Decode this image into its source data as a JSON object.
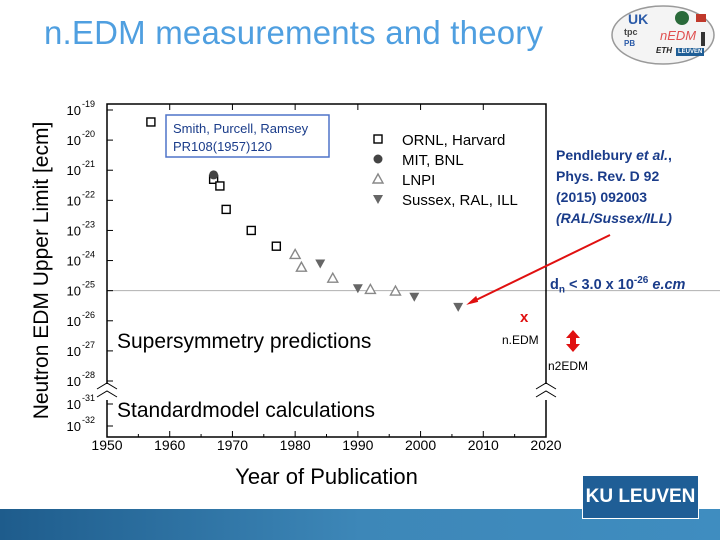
{
  "slide": {
    "title": "n.EDM measurements and theory"
  },
  "logos": {
    "uk": "UK",
    "tpc": "tpc",
    "pb": "PB",
    "nedm": "nEDM",
    "eth": "ETH",
    "leuven": "LEUVEN",
    "ku_leuven": "KU LEUVEN"
  },
  "colors": {
    "title": "#4f9fe0",
    "citation_text": "#1a3c8a",
    "arrow": "#e01010",
    "marker_red": "#e01010",
    "legend_box_border": "#4f73c9",
    "legend_box_text": "#1a3c8a"
  },
  "annotations": {
    "citation_line1_prefix": "Pendlebury ",
    "citation_line1_italic": "et al.",
    "citation_line1_suffix": ",",
    "citation_line2": "Phys. Rev. D 92",
    "citation_line3": "(2015) 092003",
    "citation_line4": "(RAL/Sussex/ILL)",
    "dn_d": "d",
    "dn_sub": "n",
    "dn_mid": " < 3.0 x 10",
    "dn_sup": "-26",
    "dn_unit": " e.cm",
    "x_marker": "x",
    "nedm_label": "n.EDM",
    "n2edm_label": "n2EDM"
  },
  "chart_data": {
    "type": "scatter",
    "xlabel": "Year of Publication",
    "ylabel": "Neutron EDM Upper Limit [ecm]",
    "xlim": [
      1950,
      2020
    ],
    "x_ticks": [
      "1950",
      "1960",
      "1970",
      "1980",
      "1990",
      "2000",
      "2010",
      "2020"
    ],
    "y_axis_log": true,
    "y_tick_exponents": [
      "-19",
      "-20",
      "-21",
      "-22",
      "-23",
      "-24",
      "-25",
      "-26",
      "-27",
      "-28"
    ],
    "y_tick_exponents_lower": [
      "-31",
      "-32"
    ],
    "y_tick_base": "10",
    "callout_box": {
      "line1": "Smith, Purcell, Ramsey",
      "line2": "PR108(1957)120"
    },
    "region_labels": {
      "susy": "Supersymmetry predictions",
      "standard_model": "Standardmodel calculations"
    },
    "current_limit": 3e-26,
    "series": [
      {
        "name": "ORNL, Harvard",
        "marker": "open-square",
        "points": [
          {
            "x": 1957,
            "y": 4e-20
          },
          {
            "x": 1967,
            "y": 5e-22
          },
          {
            "x": 1968,
            "y": 3e-22
          },
          {
            "x": 1969,
            "y": 5e-23
          },
          {
            "x": 1973,
            "y": 1e-23
          },
          {
            "x": 1977,
            "y": 3e-24
          }
        ]
      },
      {
        "name": "MIT, BNL",
        "marker": "filled-circle",
        "points": [
          {
            "x": 1967,
            "y": 7e-22
          }
        ]
      },
      {
        "name": "LNPI",
        "marker": "open-triangle",
        "points": [
          {
            "x": 1980,
            "y": 1.6e-24
          },
          {
            "x": 1981,
            "y": 6e-25
          },
          {
            "x": 1986,
            "y": 2.6e-25
          },
          {
            "x": 1992,
            "y": 1.1e-25
          },
          {
            "x": 1996,
            "y": 9.7e-26
          }
        ]
      },
      {
        "name": "Sussex, RAL, ILL",
        "marker": "filled-triangle-down",
        "points": [
          {
            "x": 1984,
            "y": 8e-25
          },
          {
            "x": 1990,
            "y": 1.2e-25
          },
          {
            "x": 1999,
            "y": 6.3e-26
          },
          {
            "x": 2006,
            "y": 2.9e-26
          }
        ]
      }
    ],
    "grid": false,
    "legend_position": "top-right"
  }
}
